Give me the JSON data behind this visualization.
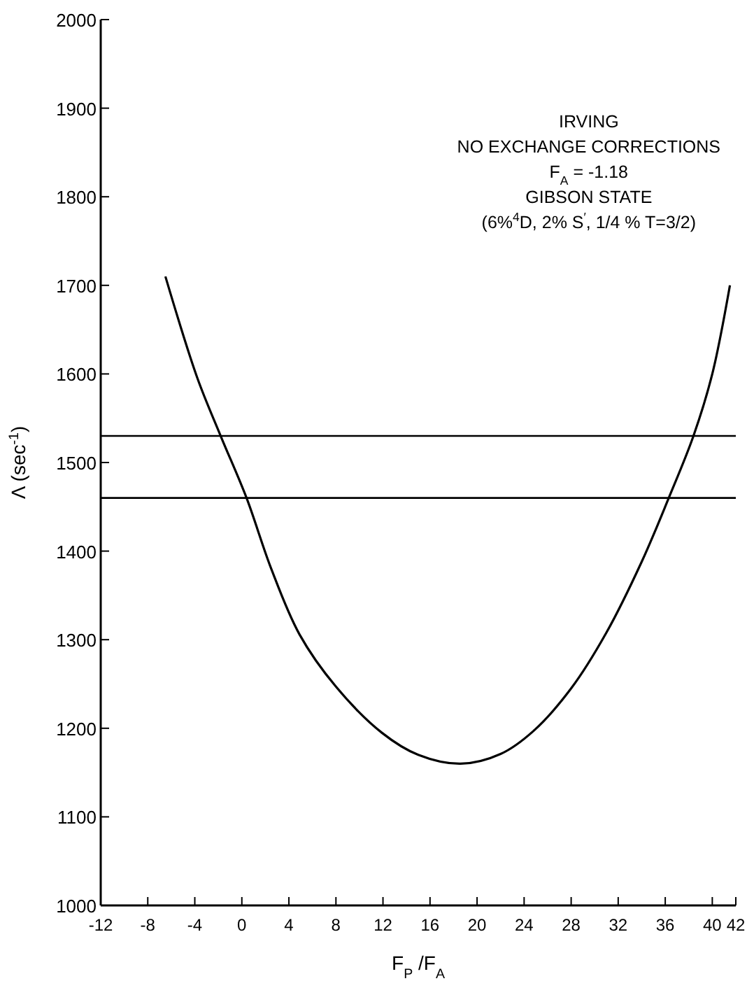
{
  "chart_data": {
    "type": "line",
    "xlabel": "F$_{P}$ /F$_{A}$",
    "ylabel": "Λ (sec$^{-1}$)",
    "annotations": [
      "IRVING",
      "NO EXCHANGE CORRECTIONS",
      "F$_{A}$ = -1.18",
      "GIBSON STATE",
      "(6%$^{4}$D, 2% S$^{′}$, 1/4 % T=3/2)"
    ],
    "series": [
      {
        "color": "#000000",
        "x": [
          -6.5,
          -3.8,
          -1.8,
          0.4,
          2.5,
          4.9,
          8,
          11.9,
          15,
          18.6,
          22,
          24.8,
          28,
          31,
          34,
          36.3,
          38.4,
          40,
          41.5
        ],
        "values": [
          1710,
          1596,
          1530,
          1460,
          1380,
          1306,
          1247,
          1195,
          1170,
          1160,
          1171,
          1197,
          1245,
          1308,
          1388,
          1460,
          1530,
          1600,
          1700
        ]
      }
    ],
    "ref_lines": [
      {
        "axis": "y",
        "value": 1530,
        "color": "#000000"
      },
      {
        "axis": "y",
        "value": 1460,
        "color": "#000000"
      }
    ],
    "xlim": [
      -12,
      42
    ],
    "xticks": [
      -12,
      -8,
      -4,
      0,
      4,
      8,
      12,
      16,
      20,
      24,
      28,
      32,
      36,
      40,
      42
    ],
    "ylim": [
      1000,
      2000
    ],
    "yticks": [
      1000,
      1100,
      1200,
      1300,
      1400,
      1500,
      1600,
      1700,
      1800,
      1900,
      2000
    ],
    "grid": false,
    "marker": "none",
    "line_style": "solid"
  }
}
